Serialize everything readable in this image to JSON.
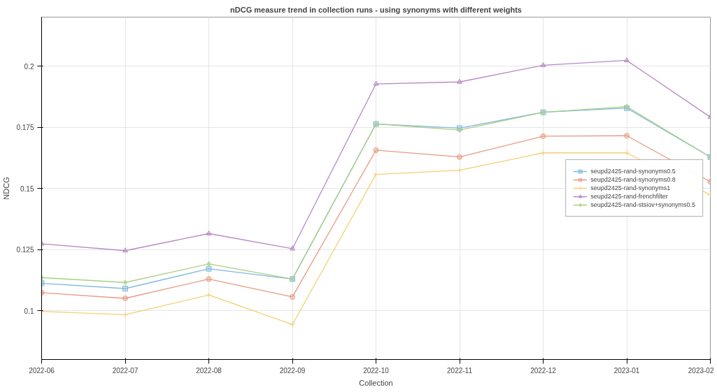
{
  "chart_data": {
    "type": "line",
    "title": "nDCG measure trend in collection runs - using synonyms with different weights",
    "xlabel": "Collection",
    "ylabel": "NDCG",
    "categories": [
      "2022-06",
      "2022-07",
      "2022-08",
      "2022-09",
      "2022-10",
      "2022-11",
      "2022-12",
      "2023-01",
      "2023-02"
    ],
    "ylim": [
      0.08,
      0.22
    ],
    "yticks": [
      0.1,
      0.125,
      0.15,
      0.175,
      0.2
    ],
    "grid": true,
    "legend": "right",
    "series": [
      {
        "name": "seupd2425-rand-synonyms0.5",
        "color": "#7fb8e0",
        "marker": "square",
        "values": [
          0.1112,
          0.109,
          0.1171,
          0.1129,
          0.1763,
          0.1746,
          0.1811,
          0.1828,
          0.1628
        ]
      },
      {
        "name": "seupd2425-rand-synonyms0.8",
        "color": "#e89a80",
        "marker": "circle",
        "values": [
          0.1073,
          0.105,
          0.1129,
          0.1056,
          0.1656,
          0.1628,
          0.1713,
          0.1715,
          0.1527
        ]
      },
      {
        "name": "seupd2425-rand-synonyms1",
        "color": "#f4cf70",
        "marker": "cross",
        "values": [
          0.0997,
          0.0983,
          0.1064,
          0.0943,
          0.1557,
          0.1574,
          0.1645,
          0.1645,
          0.1473
        ]
      },
      {
        "name": "seupd2425-rand-frenchfilter",
        "color": "#b888c8",
        "marker": "triangle",
        "values": [
          0.1273,
          0.1245,
          0.1315,
          0.1253,
          0.1927,
          0.1935,
          0.2003,
          0.2023,
          0.1791
        ]
      },
      {
        "name": "seupd2425-rand-stsiov+synonyms0.5",
        "color": "#a8d080",
        "marker": "diamond",
        "values": [
          0.1135,
          0.1115,
          0.1191,
          0.1129,
          0.1763,
          0.1738,
          0.1811,
          0.1834,
          0.1628
        ]
      }
    ]
  }
}
